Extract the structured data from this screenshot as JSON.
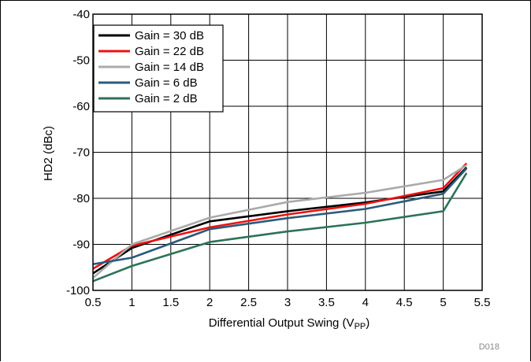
{
  "chart_data": {
    "type": "line",
    "title": "",
    "xlabel_main": "Differential Output Swing (V",
    "xlabel_sub": "PP",
    "xlabel_end": ")",
    "ylabel": "HD2 (dBc)",
    "xlim": [
      0.5,
      5.5
    ],
    "ylim": [
      -100,
      -40
    ],
    "xticks": [
      "0.5",
      "1",
      "1.5",
      "2",
      "2.5",
      "3",
      "3.5",
      "4",
      "4.5",
      "5",
      "5.5"
    ],
    "yticks": [
      "-40",
      "-50",
      "-60",
      "-70",
      "-80",
      "-90",
      "-100"
    ],
    "grid": true,
    "legend_position": "top-left",
    "note": "D018",
    "series": [
      {
        "name": "Gain = 30 dB",
        "color": "#000000",
        "x": [
          0.5,
          1,
          2,
          3,
          4,
          5,
          5.3
        ],
        "y": [
          -96.3,
          -90.8,
          -85.0,
          -82.8,
          -80.9,
          -78.5,
          -73.3
        ]
      },
      {
        "name": "Gain = 22 dB",
        "color": "#ee1111",
        "x": [
          0.5,
          1,
          2,
          3,
          4,
          5,
          5.3
        ],
        "y": [
          -95.3,
          -90.3,
          -86.3,
          -83.5,
          -81.2,
          -77.8,
          -72.4
        ]
      },
      {
        "name": "Gain = 14 dB",
        "color": "#aaaaaa",
        "x": [
          0.5,
          1,
          2,
          3,
          4,
          5,
          5.3
        ],
        "y": [
          -97.3,
          -90.0,
          -84.2,
          -80.8,
          -78.8,
          -76.0,
          -72.8
        ]
      },
      {
        "name": "Gain = 6 dB",
        "color": "#2b5a7d",
        "x": [
          0.5,
          1,
          2,
          3,
          4,
          5,
          5.3
        ],
        "y": [
          -94.3,
          -92.9,
          -86.7,
          -84.3,
          -82.3,
          -79.0,
          -73.5
        ]
      },
      {
        "name": "Gain = 2 dB",
        "color": "#2d7356",
        "x": [
          0.5,
          1,
          2,
          3,
          4,
          5,
          5.3
        ],
        "y": [
          -98.0,
          -94.7,
          -89.5,
          -87.2,
          -85.3,
          -82.8,
          -74.5
        ]
      }
    ]
  }
}
